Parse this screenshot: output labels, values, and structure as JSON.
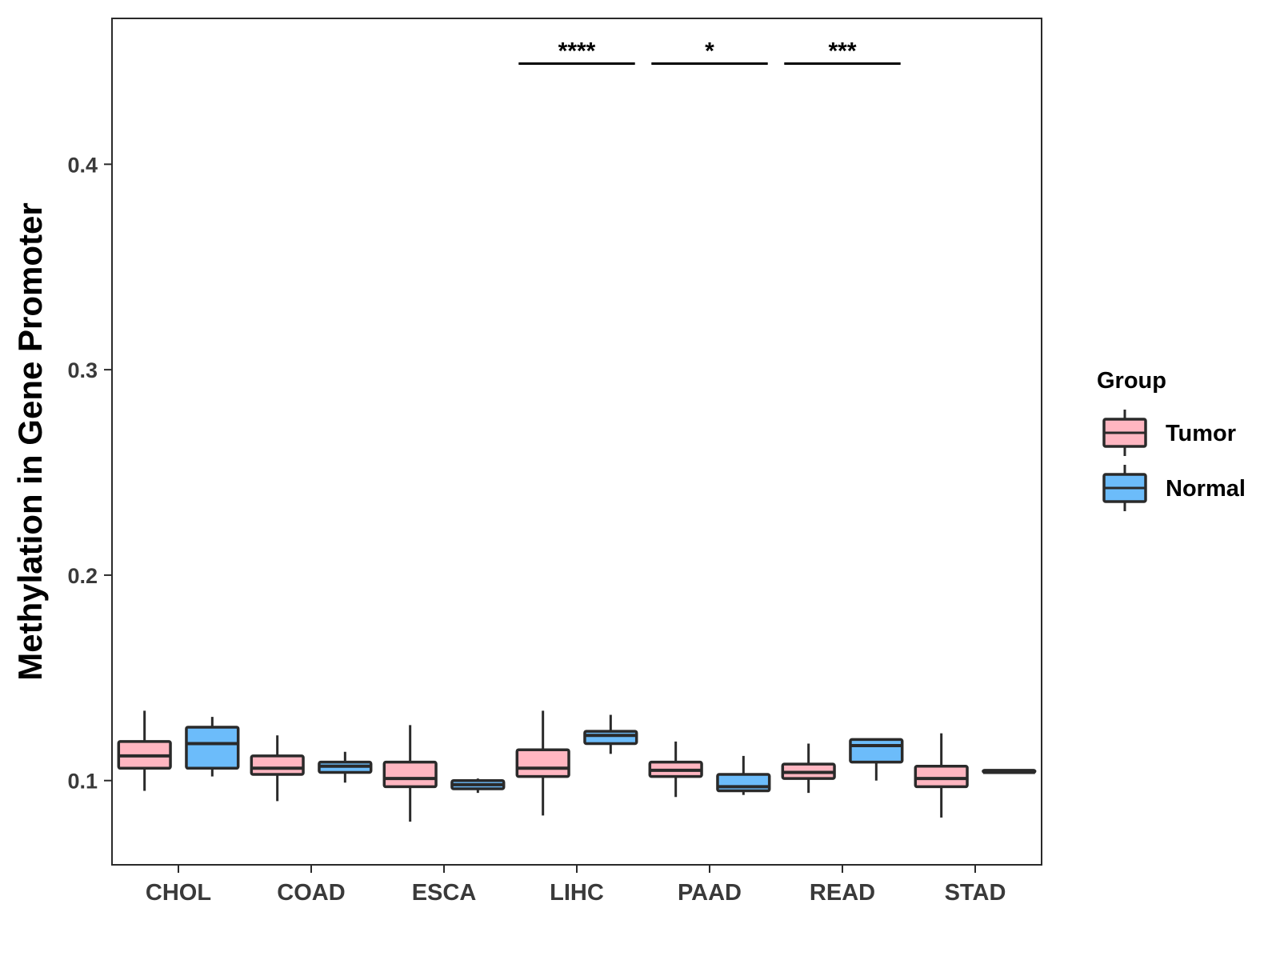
{
  "chart_data": {
    "type": "boxplot",
    "title": "",
    "xlabel": "",
    "ylabel": "Methylation in Gene Promoter",
    "ylim": [
      0.059,
      0.471
    ],
    "yticks": [
      "0.1",
      "0.2",
      "0.3",
      "0.4"
    ],
    "categories": [
      "CHOL",
      "COAD",
      "ESCA",
      "LIHC",
      "PAAD",
      "READ",
      "STAD"
    ],
    "legend": {
      "title": "Group",
      "position": "right",
      "entries": [
        {
          "name": "Tumor",
          "color": "#ffb6c1"
        },
        {
          "name": "Normal",
          "color": "#6cbcfa"
        }
      ]
    },
    "series": [
      {
        "name": "Tumor",
        "color": "#ffb6c1",
        "boxes": [
          {
            "min": 0.095,
            "q1": 0.106,
            "median": 0.112,
            "q3": 0.119,
            "max": 0.134
          },
          {
            "min": 0.09,
            "q1": 0.103,
            "median": 0.106,
            "q3": 0.112,
            "max": 0.122
          },
          {
            "min": 0.08,
            "q1": 0.097,
            "median": 0.101,
            "q3": 0.109,
            "max": 0.127
          },
          {
            "min": 0.083,
            "q1": 0.102,
            "median": 0.106,
            "q3": 0.115,
            "max": 0.134
          },
          {
            "min": 0.092,
            "q1": 0.102,
            "median": 0.105,
            "q3": 0.109,
            "max": 0.119
          },
          {
            "min": 0.094,
            "q1": 0.101,
            "median": 0.104,
            "q3": 0.108,
            "max": 0.118
          },
          {
            "min": 0.082,
            "q1": 0.097,
            "median": 0.101,
            "q3": 0.107,
            "max": 0.123
          }
        ]
      },
      {
        "name": "Normal",
        "color": "#6cbcfa",
        "boxes": [
          {
            "min": 0.102,
            "q1": 0.106,
            "median": 0.118,
            "q3": 0.126,
            "max": 0.131
          },
          {
            "min": 0.099,
            "q1": 0.104,
            "median": 0.107,
            "q3": 0.109,
            "max": 0.114
          },
          {
            "min": 0.094,
            "q1": 0.096,
            "median": 0.098,
            "q3": 0.1,
            "max": 0.101
          },
          {
            "min": 0.113,
            "q1": 0.118,
            "median": 0.122,
            "q3": 0.124,
            "max": 0.132
          },
          {
            "min": 0.093,
            "q1": 0.095,
            "median": 0.097,
            "q3": 0.103,
            "max": 0.112
          },
          {
            "min": 0.1,
            "q1": 0.109,
            "median": 0.117,
            "q3": 0.12,
            "max": 0.12
          },
          {
            "min": 0.104,
            "q1": 0.104,
            "median": 0.104,
            "q3": 0.105,
            "max": 0.105
          }
        ]
      }
    ],
    "annotations": [
      {
        "category": "LIHC",
        "label": "****",
        "y": 0.449
      },
      {
        "category": "PAAD",
        "label": "*",
        "y": 0.449
      },
      {
        "category": "READ",
        "label": "***",
        "y": 0.449
      }
    ]
  }
}
